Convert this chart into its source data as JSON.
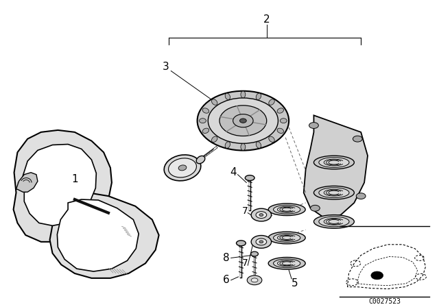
{
  "background_color": "#ffffff",
  "fig_width": 6.4,
  "fig_height": 4.48,
  "dpi": 100,
  "label_fontsize": 11,
  "code_text": "C0027523",
  "code_fontsize": 7,
  "line_color": "#000000"
}
